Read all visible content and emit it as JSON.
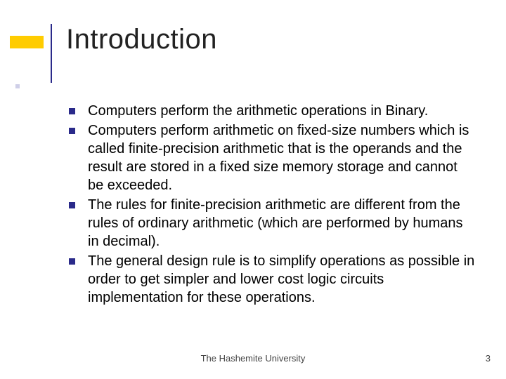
{
  "slide": {
    "title": "Introduction",
    "title_fontsize": 40,
    "title_color": "#222222",
    "accent_color": "#ffcc00",
    "line_color": "#2a2a8a",
    "bullet_color": "#2a2a8a",
    "body_fontsize": 20,
    "body_color": "#000000",
    "background_color": "#ffffff",
    "bullets": [
      "Computers perform the arithmetic operations in Binary.",
      "Computers perform arithmetic on fixed-size numbers which is called finite-precision arithmetic that is the operands and the result are stored in a fixed size memory storage and cannot be exceeded.",
      "The rules for finite-precision arithmetic are different from the rules of ordinary arithmetic (which are performed by humans in decimal).",
      "The general design rule is to simplify operations as possible in order to get simpler and lower cost logic circuits implementation for these operations."
    ],
    "footer_center": "The Hashemite University",
    "footer_page": "3",
    "footer_fontsize": 13,
    "footer_color": "#444444"
  }
}
